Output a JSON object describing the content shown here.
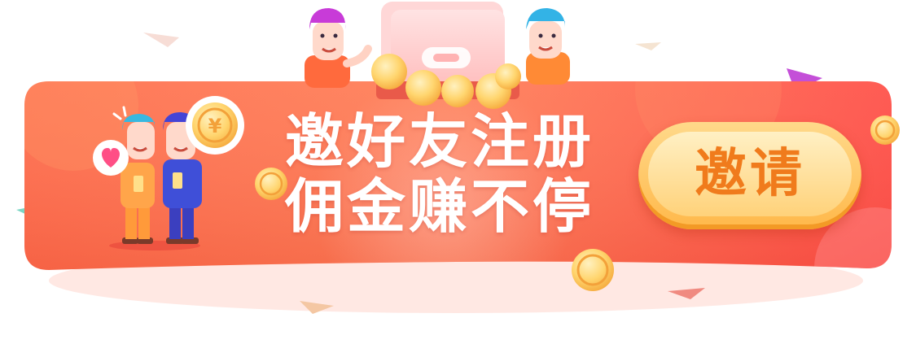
{
  "banner": {
    "headline_line1": "邀好友注册",
    "headline_line2": "佣金赚不停",
    "cta_label": "邀请",
    "coin_symbol": "¥"
  },
  "icons": {
    "characters": [
      "friends-pair-illustration",
      "person-left-icon",
      "person-right-icon"
    ],
    "decor": [
      "coin-icon",
      "heart-icon",
      "wallet-icon",
      "confetti-icon"
    ]
  },
  "colors": {
    "banner_start": "#ff7a52",
    "banner_end": "#ff4b45",
    "cta_outer": "#ffb84a",
    "cta_text": "#f07b1c",
    "coin": "#ffc25a"
  }
}
